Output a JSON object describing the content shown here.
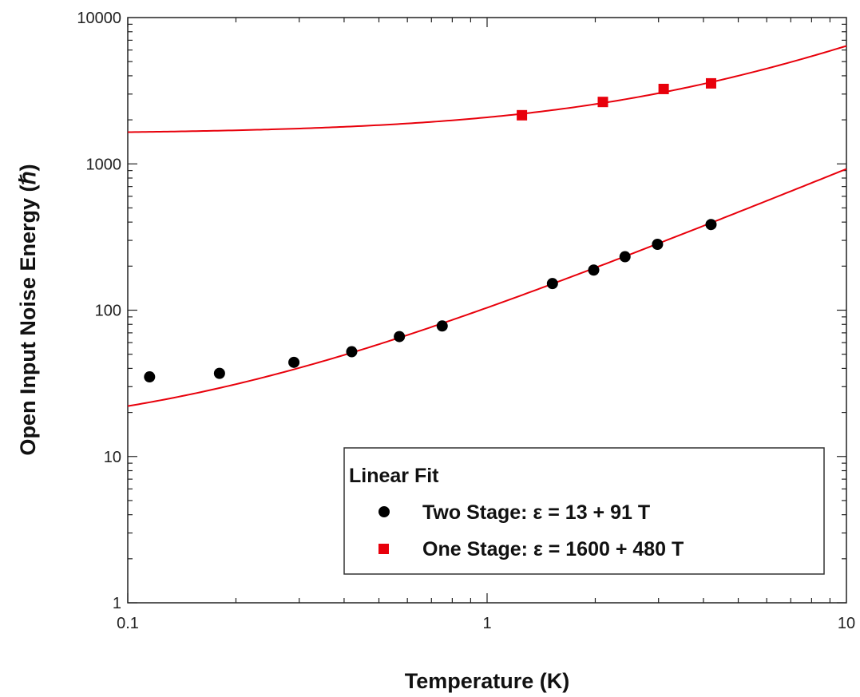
{
  "chart_data": {
    "type": "scatter",
    "xscale": "log",
    "yscale": "log",
    "xlim": [
      0.1,
      10
    ],
    "ylim": [
      1,
      10000
    ],
    "xlabel": "Temperature (K)",
    "ylabel": "Open Input Noise Energy (ℏ)",
    "x_ticks": [
      "0.1",
      "1",
      "10"
    ],
    "y_ticks": [
      "1",
      "10",
      "100",
      "1000",
      "10000"
    ],
    "grid": false,
    "legend": {
      "title": "Linear Fit",
      "placement": "bottom-right",
      "entries": [
        "Two Stage:  ε = 13 + 91 T",
        "One Stage:  ε = 1600 + 480 T"
      ]
    },
    "series": [
      {
        "name": "Two Stage",
        "marker": "circle",
        "color": "#000000",
        "x": [
          0.115,
          0.18,
          0.29,
          0.42,
          0.57,
          0.75,
          1.52,
          1.98,
          2.42,
          2.98,
          4.2
        ],
        "y": [
          35,
          37,
          44,
          52,
          66,
          78,
          152,
          188,
          232,
          282,
          385
        ]
      },
      {
        "name": "One Stage",
        "marker": "square",
        "color": "#e8000b",
        "x": [
          1.25,
          2.1,
          3.1,
          4.2
        ],
        "y": [
          2150,
          2650,
          3250,
          3550
        ]
      }
    ],
    "fits": [
      {
        "series": "Two Stage",
        "intercept": 13,
        "slope": 91,
        "color": "#e8000b"
      },
      {
        "series": "One Stage",
        "intercept": 1600,
        "slope": 480,
        "color": "#e8000b"
      }
    ]
  }
}
